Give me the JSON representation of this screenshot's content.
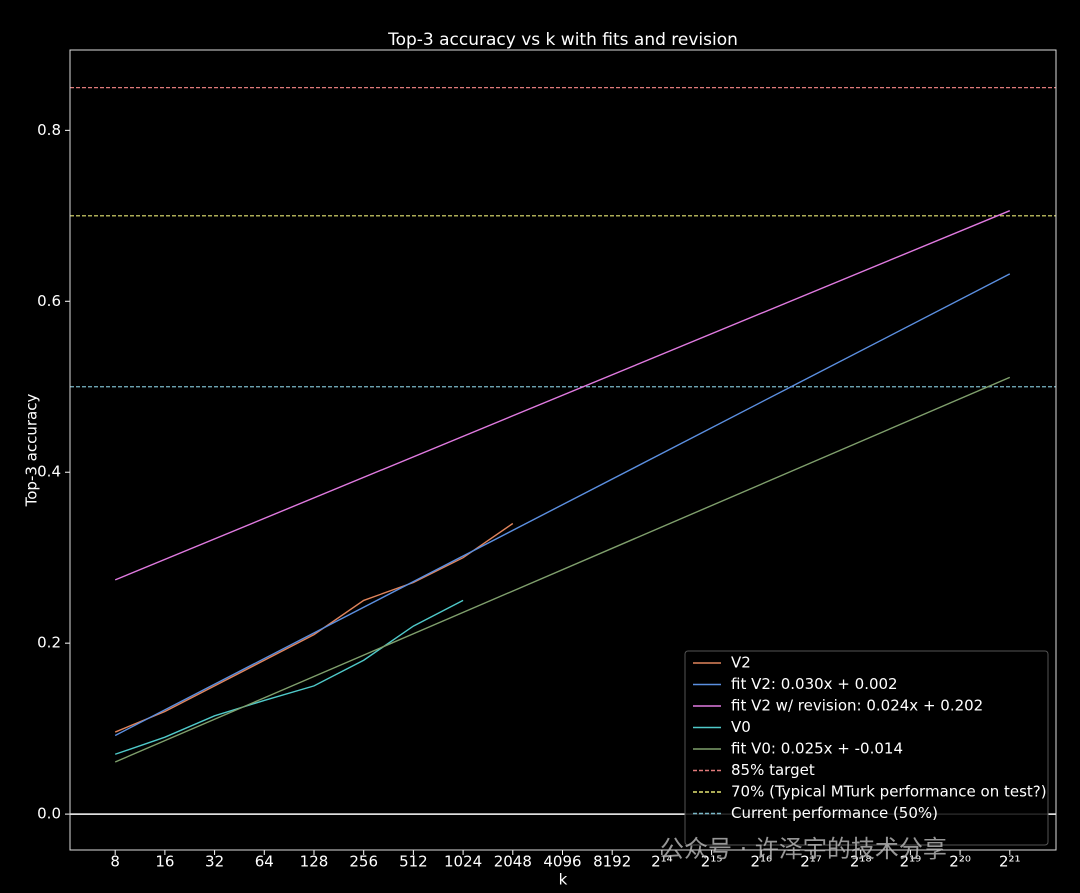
{
  "chart_data": {
    "type": "line",
    "title": "Top-3 accuracy vs k with fits and revision",
    "x_label": "k",
    "y_label": "Top-3 accuracy",
    "xscale": "log2",
    "xlim": [
      4.26,
      3995000
    ],
    "ylim": [
      -0.042,
      0.894
    ],
    "xticks": [
      8,
      16,
      32,
      64,
      128,
      256,
      512,
      1024,
      2048,
      4096,
      8192,
      {
        "value": 16384,
        "label": "2¹⁴"
      },
      {
        "value": 32768,
        "label": "2¹⁵"
      },
      {
        "value": 65536,
        "label": "2¹⁶"
      },
      {
        "value": 131072,
        "label": "2¹⁷"
      },
      {
        "value": 262144,
        "label": "2¹⁸"
      },
      {
        "value": 524288,
        "label": "2¹⁹"
      },
      {
        "value": 1048576,
        "label": "2²⁰"
      },
      {
        "value": 2097152,
        "label": "2²¹"
      }
    ],
    "yticks": [
      {
        "value": 0,
        "label": "0.0"
      },
      0.2,
      0.4,
      0.6,
      0.8
    ],
    "baseline": 0,
    "series": [
      {
        "name": "V2",
        "color": "#e0845c",
        "x": [
          8,
          16,
          32,
          64,
          128,
          256,
          512,
          1024,
          2048
        ],
        "values": [
          0.096,
          0.12,
          0.15,
          0.18,
          0.21,
          0.25,
          0.271,
          0.3,
          0.34
        ]
      },
      {
        "name": "fit V2: 0.030x + 0.002",
        "color": "#5b8fe0",
        "x": [
          8,
          2097152
        ],
        "values": [
          0.092,
          0.632
        ]
      },
      {
        "name": "fit V2 w/ revision: 0.024x + 0.202",
        "color": "#e07ae0",
        "x": [
          8,
          2097152
        ],
        "values": [
          0.274,
          0.706
        ]
      },
      {
        "name": "V0",
        "color": "#4fc9c9",
        "x": [
          8,
          16,
          32,
          64,
          128,
          256,
          512,
          1024
        ],
        "values": [
          0.07,
          0.09,
          0.115,
          0.133,
          0.15,
          0.18,
          0.22,
          0.25
        ]
      },
      {
        "name": "fit V0: 0.025x + -0.014",
        "color": "#7f9f6c",
        "x": [
          8,
          2097152
        ],
        "values": [
          0.061,
          0.511
        ]
      }
    ],
    "reference_lines": [
      {
        "name": "85% target",
        "color": "#e07a7a",
        "value": 0.85
      },
      {
        "name": "70% (Typical MTurk performance on test?)",
        "color": "#e6e672",
        "value": 0.7
      },
      {
        "name": "Current performance (50%)",
        "color": "#7ab8c8",
        "value": 0.5
      }
    ],
    "legend": "lower right",
    "watermark": "公众号 · 许泽宇的技术分享"
  }
}
